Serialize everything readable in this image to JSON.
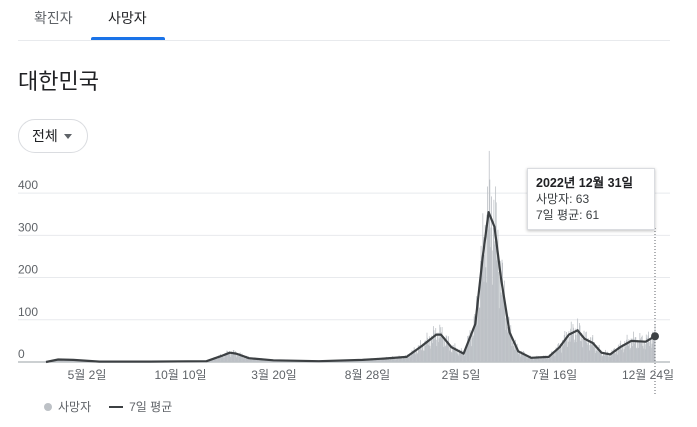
{
  "tabs": [
    {
      "label": "확진자",
      "selected": false
    },
    {
      "label": "사망자",
      "selected": true
    }
  ],
  "region": "대한민국",
  "filter": {
    "selected": "전체"
  },
  "tooltip": {
    "date": "2022년 12월 31일",
    "deaths_label": "사망자: 63",
    "avg_label": "7일 평균: 61"
  },
  "legend": {
    "daily": "사망자",
    "average": "7일 평균"
  },
  "colors": {
    "bars": "#bdc1c6",
    "line": "#3c4043",
    "accent": "#1a73e8"
  },
  "chart_data": {
    "type": "bar",
    "ylim": [
      0,
      450
    ],
    "yticks": [
      0,
      100,
      200,
      300,
      400
    ],
    "grid": true,
    "xticks": [
      "5월 2일",
      "10월 10일",
      "3월 20일",
      "8월 28일",
      "2월 5일",
      "7월 16일",
      "12월 24일"
    ],
    "x_range": [
      "2020-02-18",
      "2022-12-31"
    ],
    "series": [
      {
        "name": "사망자",
        "type": "bar"
      },
      {
        "name": "7일 평균",
        "type": "line",
        "points": [
          [
            "2020-02-18",
            0
          ],
          [
            "2020-03-10",
            6
          ],
          [
            "2020-04-05",
            5
          ],
          [
            "2020-05-20",
            1
          ],
          [
            "2020-08-15",
            1
          ],
          [
            "2020-11-20",
            2
          ],
          [
            "2020-12-15",
            14
          ],
          [
            "2020-12-30",
            22
          ],
          [
            "2021-01-10",
            20
          ],
          [
            "2021-02-01",
            9
          ],
          [
            "2021-03-15",
            4
          ],
          [
            "2021-06-01",
            2
          ],
          [
            "2021-08-15",
            5
          ],
          [
            "2021-09-20",
            8
          ],
          [
            "2021-10-30",
            12
          ],
          [
            "2021-11-25",
            38
          ],
          [
            "2021-12-20",
            65
          ],
          [
            "2021-12-28",
            65
          ],
          [
            "2022-01-15",
            35
          ],
          [
            "2022-02-05",
            20
          ],
          [
            "2022-02-25",
            90
          ],
          [
            "2022-03-10",
            250
          ],
          [
            "2022-03-20",
            355
          ],
          [
            "2022-03-30",
            320
          ],
          [
            "2022-04-10",
            200
          ],
          [
            "2022-04-25",
            70
          ],
          [
            "2022-05-10",
            25
          ],
          [
            "2022-06-01",
            10
          ],
          [
            "2022-07-01",
            12
          ],
          [
            "2022-07-20",
            35
          ],
          [
            "2022-08-05",
            65
          ],
          [
            "2022-08-20",
            75
          ],
          [
            "2022-09-01",
            55
          ],
          [
            "2022-09-15",
            45
          ],
          [
            "2022-09-30",
            22
          ],
          [
            "2022-10-15",
            18
          ],
          [
            "2022-11-01",
            35
          ],
          [
            "2022-11-20",
            50
          ],
          [
            "2022-12-15",
            48
          ],
          [
            "2022-12-31",
            61
          ]
        ]
      }
    ],
    "highlight": {
      "date": "2022-12-31",
      "deaths": 63,
      "average": 61
    }
  }
}
